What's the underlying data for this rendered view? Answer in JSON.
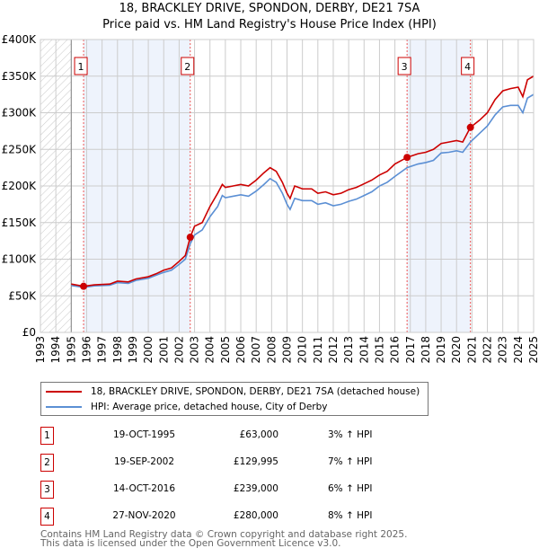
{
  "title_line1": "18, BRACKLEY DRIVE, SPONDON, DERBY, DE21 7SA",
  "title_line2": "Price paid vs. HM Land Registry's House Price Index (HPI)",
  "colors": {
    "property": "#cc0000",
    "hpi": "#5b8fd4",
    "band": "#eef3fc",
    "grid": "#cccccc"
  },
  "chart_data": {
    "type": "line",
    "xlim": [
      1993,
      2025
    ],
    "ylim": [
      0,
      400000
    ],
    "yticks": [
      0,
      50000,
      100000,
      150000,
      200000,
      250000,
      300000,
      350000,
      400000
    ],
    "ytick_labels": [
      "£0",
      "£50K",
      "£100K",
      "£150K",
      "£200K",
      "£250K",
      "£300K",
      "£350K",
      "£400K"
    ],
    "xticks": [
      1993,
      1994,
      1995,
      1996,
      1997,
      1998,
      1999,
      2000,
      2001,
      2002,
      2003,
      2004,
      2005,
      2006,
      2007,
      2008,
      2009,
      2010,
      2011,
      2012,
      2013,
      2014,
      2015,
      2016,
      2017,
      2018,
      2019,
      2020,
      2021,
      2022,
      2023,
      2024,
      2025
    ],
    "grid": true,
    "hatched_range": [
      1993,
      1995
    ],
    "series": [
      {
        "name": "18, BRACKLEY DRIVE, SPONDON, DERBY, DE21 7SA (detached house)",
        "color": "#cc0000",
        "x": [
          1995,
          1995.8,
          1996.5,
          1997.5,
          1998,
          1998.7,
          1999.2,
          2000,
          2000.5,
          2001,
          2001.5,
          2002,
          2002.4,
          2002.72,
          2003,
          2003.5,
          2004,
          2004.5,
          2004.8,
          2005,
          2005.5,
          2006,
          2006.5,
          2007,
          2007.5,
          2007.9,
          2008.3,
          2008.7,
          2009.0,
          2009.2,
          2009.5,
          2010,
          2010.6,
          2011,
          2011.5,
          2012,
          2012.5,
          2013,
          2013.5,
          2014,
          2014.5,
          2015,
          2015.5,
          2016,
          2016.79,
          2017.5,
          2018,
          2018.5,
          2019,
          2019.5,
          2020,
          2020.4,
          2020.9,
          2021.5,
          2022,
          2022.5,
          2023,
          2023.5,
          2024,
          2024.3,
          2024.6,
          2025
        ],
        "y": [
          66000,
          63000,
          65000,
          66000,
          70000,
          69000,
          73000,
          76000,
          80000,
          85000,
          88000,
          97000,
          105000,
          129995,
          145000,
          150000,
          172000,
          190000,
          202000,
          198000,
          200000,
          202000,
          200000,
          208000,
          218000,
          225000,
          220000,
          205000,
          190000,
          183000,
          200000,
          196000,
          196000,
          190000,
          192000,
          188000,
          190000,
          195000,
          198000,
          203000,
          208000,
          215000,
          220000,
          230000,
          239000,
          244000,
          246000,
          250000,
          258000,
          260000,
          262000,
          260000,
          280000,
          290000,
          300000,
          318000,
          330000,
          333000,
          335000,
          322000,
          345000,
          350000
        ]
      },
      {
        "name": "HPI: Average price, detached house, City of Derby",
        "color": "#5b8fd4",
        "x": [
          1995,
          1995.8,
          1996.5,
          1997.5,
          1998,
          1998.7,
          1999.2,
          2000,
          2000.5,
          2001,
          2001.5,
          2002,
          2002.4,
          2002.72,
          2003,
          2003.5,
          2004,
          2004.5,
          2004.8,
          2005,
          2005.5,
          2006,
          2006.5,
          2007,
          2007.5,
          2007.9,
          2008.3,
          2008.7,
          2009.0,
          2009.2,
          2009.5,
          2010,
          2010.6,
          2011,
          2011.5,
          2012,
          2012.5,
          2013,
          2013.5,
          2014,
          2014.5,
          2015,
          2015.5,
          2016,
          2016.79,
          2017.5,
          2018,
          2018.5,
          2019,
          2019.5,
          2020,
          2020.4,
          2020.9,
          2021.5,
          2022,
          2022.5,
          2023,
          2023.5,
          2024,
          2024.3,
          2024.6,
          2025
        ],
        "y": [
          64000,
          61500,
          63500,
          64500,
          68000,
          67000,
          71000,
          74000,
          78000,
          82000,
          85000,
          93000,
          100000,
          121000,
          133000,
          140000,
          158000,
          172000,
          187000,
          184000,
          186000,
          188000,
          186000,
          193000,
          202000,
          210000,
          205000,
          190000,
          175000,
          168000,
          183000,
          180000,
          180000,
          175000,
          177000,
          173000,
          175000,
          179000,
          182000,
          187000,
          192000,
          200000,
          205000,
          213000,
          225000,
          230000,
          232000,
          235000,
          245000,
          246000,
          248000,
          246000,
          260000,
          272000,
          282000,
          297000,
          308000,
          310000,
          310000,
          300000,
          320000,
          325000
        ]
      }
    ],
    "sales": [
      {
        "label": "1",
        "x": 1995.8,
        "y": 63000
      },
      {
        "label": "2",
        "x": 2002.72,
        "y": 129995
      },
      {
        "label": "3",
        "x": 2016.79,
        "y": 239000
      },
      {
        "label": "4",
        "x": 2020.9,
        "y": 280000
      }
    ],
    "bands": [
      [
        1995.8,
        2002.72
      ],
      [
        2016.79,
        2020.9
      ]
    ]
  },
  "legend": {
    "property": "18, BRACKLEY DRIVE, SPONDON, DERBY, DE21 7SA (detached house)",
    "hpi": "HPI: Average price, detached house, City of Derby"
  },
  "transactions": [
    {
      "num": "1",
      "date": "19-OCT-1995",
      "price": "£63,000",
      "hpi": "3% ↑ HPI"
    },
    {
      "num": "2",
      "date": "19-SEP-2002",
      "price": "£129,995",
      "hpi": "7% ↑ HPI"
    },
    {
      "num": "3",
      "date": "14-OCT-2016",
      "price": "£239,000",
      "hpi": "6% ↑ HPI"
    },
    {
      "num": "4",
      "date": "27-NOV-2020",
      "price": "£280,000",
      "hpi": "8% ↑ HPI"
    }
  ],
  "footer_line1": "Contains HM Land Registry data © Crown copyright and database right 2025.",
  "footer_line2": "This data is licensed under the Open Government Licence v3.0."
}
